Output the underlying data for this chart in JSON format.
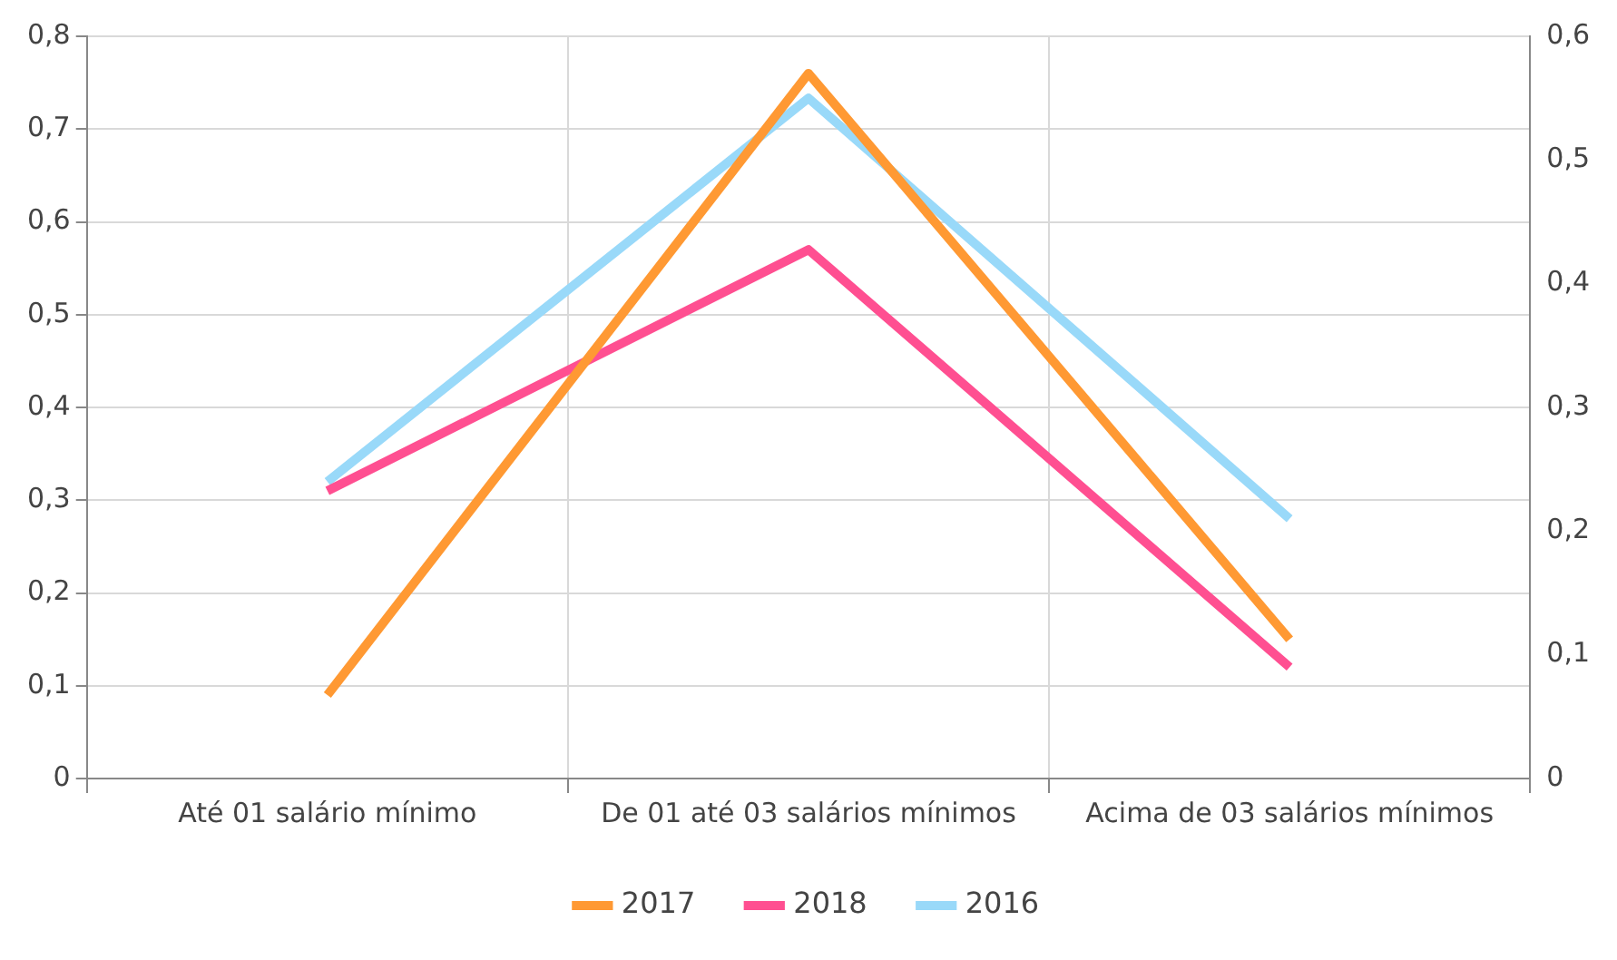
{
  "chart_data": {
    "type": "line",
    "categories": [
      "Até 01 salário mínimo",
      "De 01 até 03 salários mínimos",
      "Acima de 03 salários mínimos"
    ],
    "series": [
      {
        "name": "2017",
        "color": "#ff9933",
        "values": [
          0.09,
          0.76,
          0.15
        ]
      },
      {
        "name": "2018",
        "color": "#ff4f91",
        "values": [
          0.31,
          0.57,
          0.12
        ]
      },
      {
        "name": "2016",
        "color": "#99d9f9",
        "values": [
          0.24,
          0.55,
          0.21
        ],
        "axis": "y2"
      }
    ],
    "ylim": [
      0,
      0.8
    ],
    "yticks": [
      {
        "value": 0,
        "label": "0"
      },
      {
        "value": 0.1,
        "label": "0,1"
      },
      {
        "value": 0.2,
        "label": "0,2"
      },
      {
        "value": 0.3,
        "label": "0,3"
      },
      {
        "value": 0.4,
        "label": "0,4"
      },
      {
        "value": 0.5,
        "label": "0,5"
      },
      {
        "value": 0.6,
        "label": "0,6"
      },
      {
        "value": 0.7,
        "label": "0,7"
      },
      {
        "value": 0.8,
        "label": "0,8"
      }
    ],
    "y2lim": [
      0,
      0.6
    ],
    "y2ticks": [
      {
        "value": 0,
        "label": "0"
      },
      {
        "value": 0.1,
        "label": "0,1"
      },
      {
        "value": 0.2,
        "label": "0,2"
      },
      {
        "value": 0.3,
        "label": "0,3"
      },
      {
        "value": 0.4,
        "label": "0,4"
      },
      {
        "value": 0.5,
        "label": "0,5"
      },
      {
        "value": 0.6,
        "label": "0,6"
      }
    ],
    "grid": true,
    "legend": "bottom",
    "marker": "none",
    "line_style": "solid"
  }
}
